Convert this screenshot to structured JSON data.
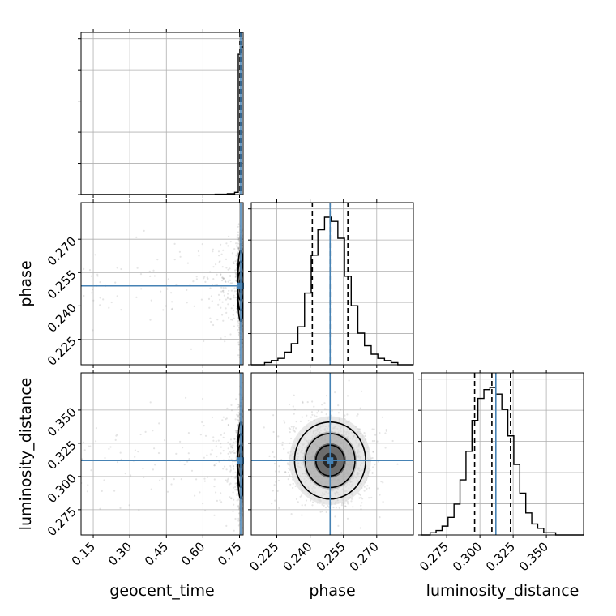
{
  "chart_data": {
    "type": "corner",
    "params": [
      "geocent_time",
      "phase",
      "luminosity_distance"
    ],
    "axis_labels": {
      "geocent_time": "geocent_time",
      "phase": "phase",
      "luminosity_distance": "luminosity_distance"
    },
    "ranges": {
      "geocent_time": [
        0.1,
        0.765
      ],
      "phase": [
        0.2135,
        0.2865
      ],
      "luminosity_distance": [
        0.256,
        0.378
      ]
    },
    "ticks": {
      "geocent_time": {
        "values": [
          0.15,
          0.3,
          0.45,
          0.6,
          0.75
        ],
        "labels": [
          "0.15",
          "0.30",
          "0.45",
          "0.60",
          "0.75"
        ]
      },
      "phase": {
        "values": [
          0.225,
          0.24,
          0.255,
          0.27
        ],
        "labels": [
          "0.225",
          "0.240",
          "0.255",
          "0.270"
        ]
      },
      "luminosity_distance": {
        "values": [
          0.275,
          0.3,
          0.325,
          0.35
        ],
        "labels": [
          "0.275",
          "0.300",
          "0.325",
          "0.350"
        ]
      }
    },
    "truths": {
      "geocent_time": 0.755,
      "phase": 0.249,
      "luminosity_distance": 0.312
    },
    "quantiles": {
      "geocent_time": [
        0.752,
        0.755,
        0.758
      ],
      "phase": [
        0.241,
        0.249,
        0.257
      ],
      "luminosity_distance": [
        0.296,
        0.309,
        0.323
      ]
    },
    "histograms": {
      "geocent_time": {
        "edges": [
          0.1,
          0.65,
          0.7,
          0.73,
          0.745,
          0.755,
          0.765
        ],
        "counts": [
          0,
          0.2,
          0.6,
          1.5,
          95,
          100
        ]
      },
      "phase": {
        "edges": [
          0.2135,
          0.2165,
          0.2195,
          0.2225,
          0.2255,
          0.2285,
          0.2315,
          0.2345,
          0.2375,
          0.2405,
          0.2435,
          0.2465,
          0.2495,
          0.2525,
          0.2555,
          0.2585,
          0.2615,
          0.2645,
          0.2675,
          0.2705,
          0.2735,
          0.2765,
          0.2795,
          0.2825,
          0.2865
        ],
        "counts": [
          0,
          0,
          1,
          2,
          3,
          6,
          10,
          18,
          34,
          52,
          64,
          70,
          68,
          60,
          42,
          28,
          15,
          9,
          5,
          3,
          2,
          1,
          0,
          0
        ]
      },
      "luminosity_distance": {
        "edges": [
          0.256,
          0.2625,
          0.267,
          0.2715,
          0.276,
          0.2805,
          0.285,
          0.2895,
          0.294,
          0.2985,
          0.303,
          0.3075,
          0.312,
          0.3165,
          0.321,
          0.3255,
          0.33,
          0.3345,
          0.339,
          0.3435,
          0.348,
          0.3525,
          0.357,
          0.3615,
          0.378
        ],
        "counts": [
          0,
          1,
          2,
          4,
          8,
          14,
          25,
          38,
          52,
          62,
          66,
          67,
          64,
          57,
          45,
          32,
          19,
          10,
          5,
          3,
          1,
          1,
          0,
          0
        ]
      }
    },
    "pairs": [
      {
        "x": "geocent_time",
        "y": "phase",
        "center": [
          0.755,
          0.249
        ],
        "spread": [
          0.006,
          0.008
        ]
      },
      {
        "x": "geocent_time",
        "y": "luminosity_distance",
        "center": [
          0.755,
          0.312
        ],
        "spread": [
          0.006,
          0.0145
        ]
      },
      {
        "x": "phase",
        "y": "luminosity_distance",
        "center": [
          0.249,
          0.312
        ],
        "spread": [
          0.008,
          0.0145
        ]
      }
    ],
    "grid": true,
    "truth_color": "#4682b4",
    "hist_color": "#000000",
    "scatter_color": "#888888",
    "background": "#ffffff"
  }
}
